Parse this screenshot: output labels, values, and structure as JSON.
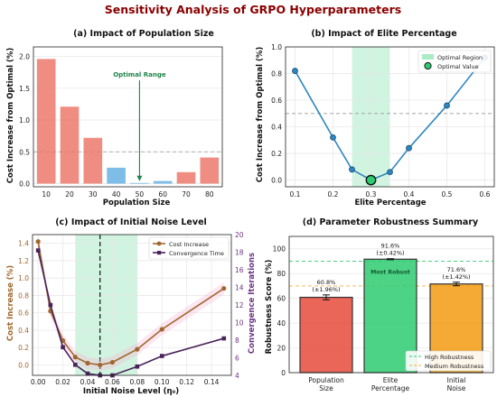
{
  "suptitle": "Sensitivity Analysis of GRPO Hyperparameters",
  "colors": {
    "suptitle": "#8b0000",
    "bar_red": "#ec7063",
    "bar_blue": "#5dade2",
    "line_blue": "#2e86c1",
    "green_fill": "#abebc6",
    "green_text": "#1e8449",
    "marker_green": "#2ecc71",
    "brown": "#a0672f",
    "purple": "#4a235a",
    "purple_text": "#6c3483",
    "orange_red": "#e74c3c",
    "emerald": "#2ecc71",
    "amber": "#f39c12",
    "medium_line": "#f5b041"
  },
  "chart_data": [
    {
      "id": "a",
      "type": "bar",
      "title": "(a) Impact of Population Size",
      "xlabel": "Population Size",
      "ylabel": "Cost Increase from Optimal (%)",
      "categories": [
        "10",
        "20",
        "30",
        "40",
        "50",
        "60",
        "70",
        "80"
      ],
      "values": [
        1.96,
        1.21,
        0.72,
        0.25,
        0.01,
        0.04,
        0.18,
        0.41
      ],
      "highlight_categories": [
        "40",
        "50",
        "60"
      ],
      "ylim": [
        -0.05,
        2.15
      ],
      "yticks": [
        "0.0",
        "0.5",
        "1.0",
        "1.5",
        "2.0"
      ],
      "reference_line": 0.5,
      "annotation": {
        "text": "Optimal Range",
        "category": "50",
        "text_y": 1.68,
        "arrow_to_y": 0.01
      },
      "grid": true
    },
    {
      "id": "b",
      "type": "line",
      "title": "(b) Impact of Elite Percentage",
      "xlabel": "Elite Percentage",
      "ylabel": "Cost Increase from Optimal (%)",
      "x": [
        0.1,
        0.2,
        0.25,
        0.3,
        0.35,
        0.4,
        0.5,
        0.6
      ],
      "y": [
        0.82,
        0.32,
        0.08,
        0.0,
        0.06,
        0.24,
        0.56,
        0.92
      ],
      "xlim": [
        0.075,
        0.625
      ],
      "ylim": [
        -0.05,
        1.0
      ],
      "xticks": [
        "0.1",
        "0.2",
        "0.3",
        "0.4",
        "0.5",
        "0.6"
      ],
      "yticks": [
        "0.0",
        "0.2",
        "0.4",
        "0.6",
        "0.8",
        "1.0"
      ],
      "optimal_region": [
        0.25,
        0.35
      ],
      "optimal_point": {
        "x": 0.3,
        "y": 0.0
      },
      "reference_line": 0.5,
      "legend": [
        "Optimal Region",
        "Optimal Value"
      ],
      "legend_position": "top-right",
      "grid": true
    },
    {
      "id": "c",
      "type": "line",
      "title": "(c) Impact of Initial Noise Level",
      "xlabel": "Initial Noise Level (η₀)",
      "ylabel": "Cost Increase (%)",
      "ylabel_right": "Convergence Iterations",
      "x": [
        0.0,
        0.01,
        0.02,
        0.03,
        0.04,
        0.05,
        0.06,
        0.08,
        0.1,
        0.15
      ],
      "series": [
        {
          "name": "Cost Increase",
          "axis": "left",
          "values": [
            1.42,
            0.62,
            0.28,
            0.09,
            0.02,
            0.0,
            0.03,
            0.18,
            0.41,
            0.88
          ]
        },
        {
          "name": "Convergence Time",
          "axis": "right",
          "values": [
            18.2,
            12.0,
            7.2,
            5.2,
            4.2,
            4.0,
            4.0,
            5.0,
            6.2,
            8.2
          ]
        }
      ],
      "xlim": [
        -0.0045,
        0.156
      ],
      "ylim_left": [
        -0.12,
        1.5
      ],
      "ylim_right": [
        4,
        20
      ],
      "xticks": [
        "0.00",
        "0.02",
        "0.04",
        "0.06",
        "0.08",
        "0.10",
        "0.12",
        "0.14"
      ],
      "yticks_left": [
        "0.0",
        "0.2",
        "0.4",
        "0.6",
        "0.8",
        "1.0",
        "1.2",
        "1.4"
      ],
      "yticks_right": [
        "4",
        "6",
        "8",
        "10",
        "12",
        "14",
        "16",
        "18",
        "20"
      ],
      "optimal_region": [
        0.03,
        0.08
      ],
      "optimal_line": 0.05,
      "legend_position": "top-right",
      "grid": true
    },
    {
      "id": "d",
      "type": "bar",
      "title": "(d) Parameter Robustness Summary",
      "ylabel": "Robustness Score (%)",
      "categories": [
        "Population\nSize",
        "Elite\nPercentage",
        "Initial\nNoise"
      ],
      "values": [
        60.8,
        91.6,
        71.6
      ],
      "errors": [
        1.96,
        0.42,
        1.42
      ],
      "value_labels": [
        "60.8%\n(±1.96%)",
        "91.6%\n(±0.42%)",
        "71.6%\n(±1.42%)"
      ],
      "annotation": "Most Robust",
      "ylim": [
        0,
        110
      ],
      "yticks": [
        "0",
        "20",
        "40",
        "60",
        "80",
        "100"
      ],
      "reference_lines": [
        {
          "name": "High Robustness",
          "value": 90
        },
        {
          "name": "Medium Robustness",
          "value": 70
        }
      ],
      "legend_position": "bottom-right",
      "grid": true
    }
  ]
}
